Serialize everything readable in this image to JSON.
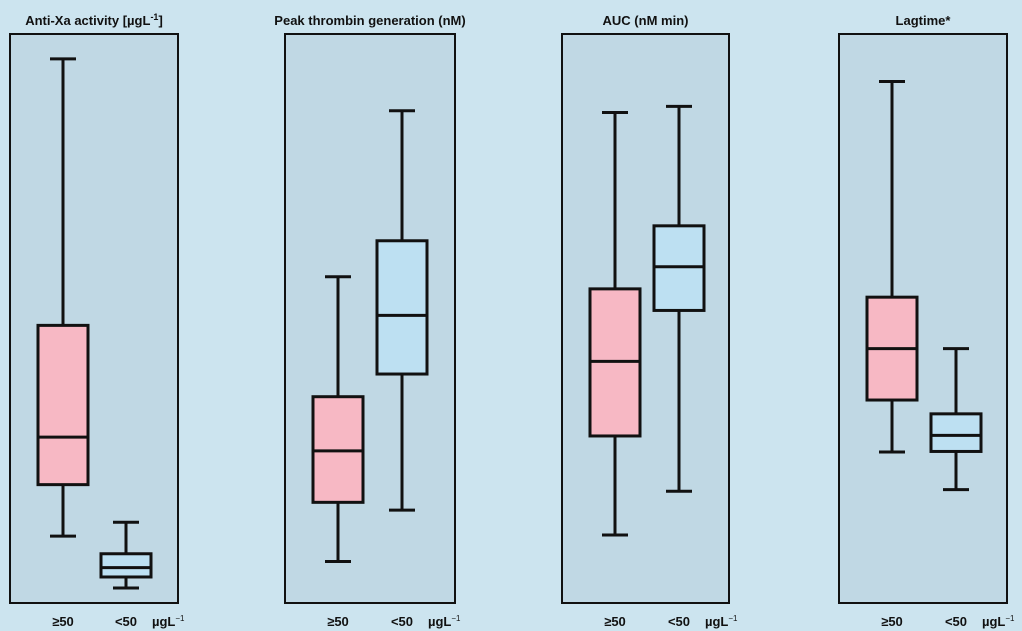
{
  "figure": {
    "background": "#cce4ef",
    "panel_fill": "#c0d8e4",
    "stroke": "#111111"
  },
  "chart_data": [
    {
      "type": "box",
      "title": "Anti-Xa activity [µgL",
      "title_sup": "-1",
      "title_close": "]",
      "categories": [
        "≥50",
        "<50"
      ],
      "unit_label": "µgL",
      "unit_sup": "−1",
      "ylim": [
        0,
        100
      ],
      "series": [
        {
          "category": "≥50",
          "color": "#f7b8c4",
          "min": 11.2,
          "q1": 20.5,
          "median": 29.1,
          "q3": 49.3,
          "max": 97.5
        },
        {
          "category": "<50",
          "color": "#bde0f2",
          "min": 1.8,
          "q1": 3.8,
          "median": 5.5,
          "q3": 8.0,
          "max": 13.7
        }
      ]
    },
    {
      "type": "box",
      "title": "Peak thrombin generation (nM)",
      "categories": [
        "≥50",
        "<50"
      ],
      "unit_label": "µgL",
      "unit_sup": "−1",
      "ylim": [
        0,
        100
      ],
      "series": [
        {
          "category": "≥50",
          "color": "#f7b8c4",
          "min": 6.6,
          "q1": 17.3,
          "median": 26.6,
          "q3": 36.4,
          "max": 58.1
        },
        {
          "category": "<50",
          "color": "#bde0f2",
          "min": 15.9,
          "q1": 40.5,
          "median": 51.1,
          "q3": 64.6,
          "max": 88.1
        }
      ]
    },
    {
      "type": "box",
      "title": "AUC (nM min)",
      "categories": [
        "≥50",
        "<50"
      ],
      "unit_label": "µgL",
      "unit_sup": "−1",
      "ylim": [
        0,
        100
      ],
      "series": [
        {
          "category": "≥50",
          "color": "#f7b8c4",
          "min": 11.4,
          "q1": 29.3,
          "median": 42.8,
          "q3": 55.9,
          "max": 87.8
        },
        {
          "category": "<50",
          "color": "#bde0f2",
          "min": 19.3,
          "q1": 52.0,
          "median": 59.9,
          "q3": 67.3,
          "max": 88.9
        }
      ]
    },
    {
      "type": "box",
      "title": "Lagtime*",
      "categories": [
        "≥50",
        "<50"
      ],
      "unit_label": "µgL",
      "unit_sup": "−1",
      "ylim": [
        0,
        100
      ],
      "series": [
        {
          "category": "≥50",
          "color": "#f7b8c4",
          "min": 26.4,
          "q1": 35.8,
          "median": 45.1,
          "q3": 54.4,
          "max": 93.4
        },
        {
          "category": "<50",
          "color": "#bde0f2",
          "min": 19.6,
          "q1": 26.5,
          "median": 29.4,
          "q3": 33.3,
          "max": 45.1
        }
      ]
    }
  ]
}
